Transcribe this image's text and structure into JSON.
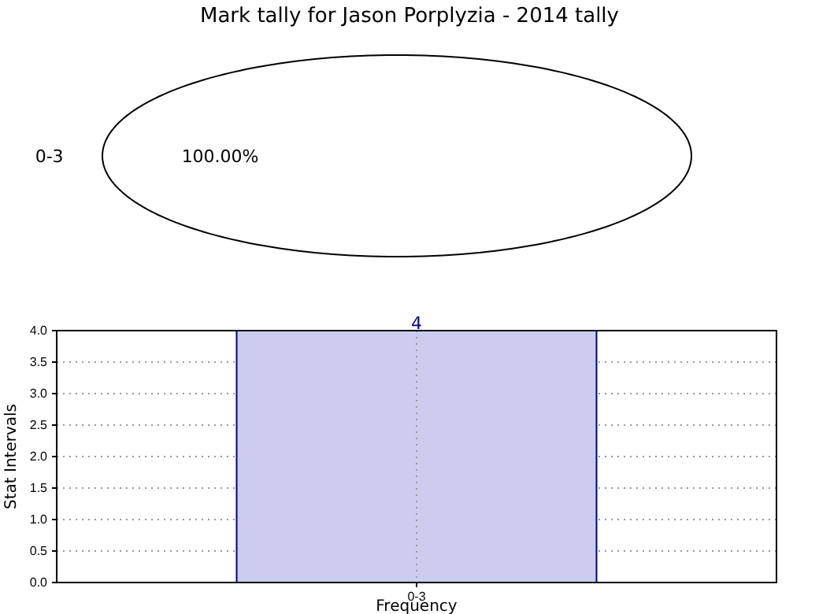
{
  "chart_data": [
    {
      "type": "pie",
      "title": "Mark tally for Jason Porplyzia - 2014 tally",
      "categories": [
        "0-3"
      ],
      "values": [
        100
      ],
      "colors": [
        "#ffffff"
      ],
      "value_labels": [
        "100.00%"
      ]
    },
    {
      "type": "bar",
      "categories": [
        "0-3"
      ],
      "values": [
        4
      ],
      "color": "#ccccee",
      "xlabel": "Frequency",
      "ylabel": "Stat Intervals",
      "ylim": [
        0,
        4
      ],
      "yticks": [
        {
          "value": 0,
          "label": "0.0"
        },
        {
          "value": 0.5,
          "label": "0.5"
        },
        {
          "value": 1,
          "label": "1.0"
        },
        {
          "value": 1.5,
          "label": "1.5"
        },
        {
          "value": 2,
          "label": "2.0"
        },
        {
          "value": 2.5,
          "label": "2.5"
        },
        {
          "value": 3,
          "label": "3.0"
        },
        {
          "value": 3.5,
          "label": "3.5"
        },
        {
          "value": 4,
          "label": "4.0"
        }
      ],
      "grid": true,
      "data_labels": true
    }
  ]
}
